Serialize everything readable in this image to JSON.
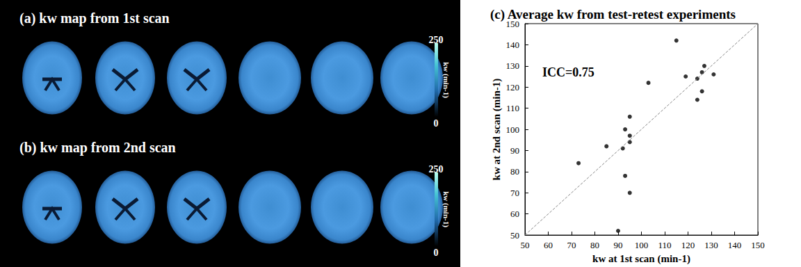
{
  "maps": [
    {
      "title": "(a) kw map from 1st scan",
      "colorbar": {
        "label": "kw (min-1)",
        "range": [
          0,
          250
        ],
        "ticks": [
          0,
          250
        ]
      }
    },
    {
      "title": "(b) kw map from 2nd scan",
      "colorbar": {
        "label": "kw (min-1)",
        "range": [
          0,
          250
        ],
        "ticks": [
          0,
          250
        ]
      }
    }
  ],
  "chart_data": {
    "type": "scatter",
    "title": "(c) Average kw from test-retest experiments",
    "xlabel": "kw at 1st scan (min-1)",
    "ylabel": "kw at 2nd scan (min-1)",
    "annotation": "ICC=0.75",
    "x": [
      73,
      85,
      90,
      92,
      93,
      93,
      95,
      95,
      95,
      95,
      103,
      115,
      119,
      124,
      124,
      126,
      126,
      127,
      131
    ],
    "values": [
      84,
      92,
      52,
      91,
      100,
      78,
      106,
      97,
      94,
      70,
      122,
      142,
      125,
      124,
      114,
      127,
      118,
      130,
      126
    ],
    "color": "#000000",
    "marker": "circle",
    "reference_line": {
      "x": [
        50,
        150
      ],
      "y": [
        50,
        150
      ],
      "line_style": "dashed"
    },
    "xlim": [
      50,
      150
    ],
    "ylim": [
      50,
      150
    ],
    "xticks": [
      50,
      60,
      70,
      80,
      90,
      100,
      110,
      120,
      130,
      140,
      150
    ],
    "yticks": [
      50,
      60,
      70,
      80,
      90,
      100,
      110,
      120,
      130,
      140,
      150
    ],
    "grid": false
  }
}
